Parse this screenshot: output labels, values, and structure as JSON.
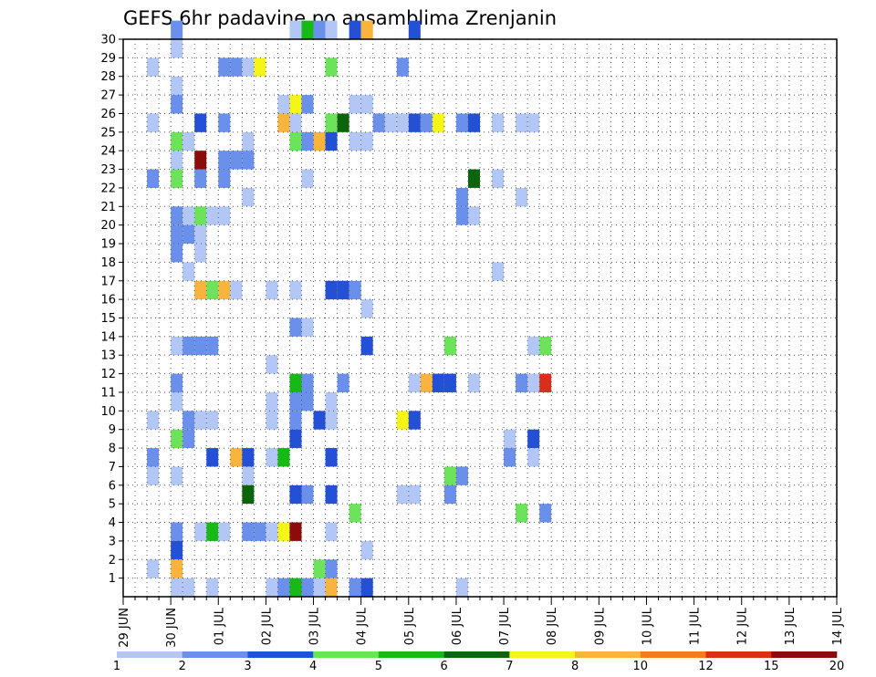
{
  "chart_data": {
    "type": "heatmap",
    "title": "GEFS 6hr padavine po ansamblima Zrenjanin",
    "xlabel": "",
    "ylabel": "",
    "x_tick_labels": [
      "29 JUN",
      "30 JUN",
      "01 JUL",
      "02 JUL",
      "03 JUL",
      "04 JUL",
      "05 JUL",
      "06 JUL",
      "07 JUL",
      "08 JUL",
      "09 JUL",
      "10 JUL",
      "11 JUL",
      "12 JUL",
      "13 JUL",
      "14 JUL"
    ],
    "x_range": [
      "29 JUN 00z",
      "14 JUL 00z"
    ],
    "time_step_hours": 6,
    "y_tick_labels": [
      "1",
      "2",
      "3",
      "4",
      "5",
      "6",
      "7",
      "8",
      "9",
      "10",
      "11",
      "12",
      "13",
      "14",
      "15",
      "16",
      "17",
      "18",
      "19",
      "20",
      "21",
      "22",
      "23",
      "24",
      "25",
      "26",
      "27",
      "28",
      "29",
      "30"
    ],
    "y_range": [
      0,
      30
    ],
    "grid": "dotted",
    "colorbar": {
      "position": "bottom",
      "labels": [
        "1",
        "2",
        "3",
        "4",
        "5",
        "6",
        "7",
        "8",
        "10",
        "12",
        "15",
        "20"
      ],
      "colors": [
        "#b3c7f7",
        "#6a90ec",
        "#2450d6",
        "#6de35b",
        "#17b917",
        "#0c650c",
        "#f5f518",
        "#f9b43e",
        "#f27c1e",
        "#d92e1b",
        "#8c0b0b"
      ]
    },
    "cell_format": "[member, time_step_index_from_29JUN_00z, color_class]",
    "cells": [
      [
        30,
        4,
        1
      ],
      [
        30,
        14,
        0
      ],
      [
        30,
        15,
        4
      ],
      [
        30,
        16,
        1
      ],
      [
        30,
        17,
        0
      ],
      [
        30,
        19,
        2
      ],
      [
        30,
        20,
        7
      ],
      [
        30,
        24,
        2
      ],
      [
        29,
        4,
        0
      ],
      [
        28,
        2,
        0
      ],
      [
        28,
        8,
        1
      ],
      [
        28,
        9,
        1
      ],
      [
        28,
        10,
        0
      ],
      [
        28,
        11,
        6
      ],
      [
        28,
        17,
        3
      ],
      [
        28,
        23,
        1
      ],
      [
        27,
        4,
        0
      ],
      [
        26,
        4,
        1
      ],
      [
        26,
        13,
        0
      ],
      [
        26,
        14,
        6
      ],
      [
        26,
        15,
        1
      ],
      [
        26,
        19,
        0
      ],
      [
        26,
        20,
        0
      ],
      [
        25,
        2,
        0
      ],
      [
        25,
        6,
        2
      ],
      [
        25,
        8,
        1
      ],
      [
        25,
        13,
        7
      ],
      [
        25,
        14,
        0
      ],
      [
        25,
        17,
        3
      ],
      [
        25,
        18,
        5
      ],
      [
        25,
        21,
        1
      ],
      [
        25,
        22,
        0
      ],
      [
        25,
        23,
        0
      ],
      [
        25,
        24,
        2
      ],
      [
        25,
        25,
        1
      ],
      [
        25,
        26,
        6
      ],
      [
        25,
        28,
        1
      ],
      [
        25,
        29,
        2
      ],
      [
        25,
        31,
        0
      ],
      [
        25,
        33,
        0
      ],
      [
        25,
        34,
        0
      ],
      [
        24,
        4,
        3
      ],
      [
        24,
        5,
        0
      ],
      [
        24,
        10,
        0
      ],
      [
        24,
        14,
        3
      ],
      [
        24,
        15,
        1
      ],
      [
        24,
        16,
        7
      ],
      [
        24,
        17,
        2
      ],
      [
        24,
        19,
        0
      ],
      [
        24,
        20,
        0
      ],
      [
        23,
        4,
        0
      ],
      [
        23,
        6,
        10
      ],
      [
        23,
        8,
        1
      ],
      [
        23,
        9,
        1
      ],
      [
        23,
        10,
        1
      ],
      [
        22,
        2,
        1
      ],
      [
        22,
        4,
        3
      ],
      [
        22,
        6,
        1
      ],
      [
        22,
        8,
        1
      ],
      [
        22,
        15,
        0
      ],
      [
        22,
        29,
        5
      ],
      [
        22,
        31,
        0
      ],
      [
        21,
        10,
        0
      ],
      [
        21,
        28,
        1
      ],
      [
        21,
        33,
        0
      ],
      [
        20,
        4,
        1
      ],
      [
        20,
        5,
        0
      ],
      [
        20,
        6,
        3
      ],
      [
        20,
        7,
        0
      ],
      [
        20,
        8,
        0
      ],
      [
        20,
        28,
        1
      ],
      [
        20,
        29,
        0
      ],
      [
        19,
        4,
        1
      ],
      [
        19,
        5,
        1
      ],
      [
        19,
        6,
        0
      ],
      [
        18,
        4,
        1
      ],
      [
        18,
        6,
        0
      ],
      [
        17,
        5,
        0
      ],
      [
        17,
        31,
        0
      ],
      [
        16,
        6,
        7
      ],
      [
        16,
        7,
        3
      ],
      [
        16,
        8,
        7
      ],
      [
        16,
        9,
        0
      ],
      [
        16,
        12,
        0
      ],
      [
        16,
        14,
        0
      ],
      [
        16,
        17,
        2
      ],
      [
        16,
        18,
        2
      ],
      [
        16,
        19,
        1
      ],
      [
        15,
        20,
        0
      ],
      [
        14,
        14,
        1
      ],
      [
        14,
        15,
        0
      ],
      [
        13,
        4,
        0
      ],
      [
        13,
        5,
        1
      ],
      [
        13,
        6,
        1
      ],
      [
        13,
        7,
        1
      ],
      [
        13,
        20,
        2
      ],
      [
        13,
        27,
        3
      ],
      [
        13,
        34,
        0
      ],
      [
        13,
        35,
        3
      ],
      [
        12,
        12,
        0
      ],
      [
        11,
        4,
        1
      ],
      [
        11,
        14,
        4
      ],
      [
        11,
        15,
        1
      ],
      [
        11,
        18,
        1
      ],
      [
        11,
        24,
        0
      ],
      [
        11,
        25,
        7
      ],
      [
        11,
        26,
        2
      ],
      [
        11,
        27,
        2
      ],
      [
        11,
        29,
        0
      ],
      [
        11,
        33,
        1
      ],
      [
        11,
        34,
        0
      ],
      [
        11,
        35,
        9
      ],
      [
        10,
        4,
        0
      ],
      [
        10,
        12,
        0
      ],
      [
        10,
        14,
        1
      ],
      [
        10,
        15,
        1
      ],
      [
        10,
        17,
        0
      ],
      [
        9,
        2,
        0
      ],
      [
        9,
        5,
        1
      ],
      [
        9,
        6,
        0
      ],
      [
        9,
        7,
        0
      ],
      [
        9,
        12,
        0
      ],
      [
        9,
        14,
        1
      ],
      [
        9,
        16,
        2
      ],
      [
        9,
        17,
        0
      ],
      [
        9,
        23,
        6
      ],
      [
        9,
        24,
        2
      ],
      [
        8,
        4,
        3
      ],
      [
        8,
        5,
        1
      ],
      [
        8,
        14,
        2
      ],
      [
        8,
        32,
        0
      ],
      [
        8,
        34,
        2
      ],
      [
        7,
        2,
        1
      ],
      [
        7,
        7,
        2
      ],
      [
        7,
        9,
        7
      ],
      [
        7,
        10,
        2
      ],
      [
        7,
        12,
        0
      ],
      [
        7,
        13,
        4
      ],
      [
        7,
        17,
        2
      ],
      [
        7,
        32,
        1
      ],
      [
        7,
        34,
        0
      ],
      [
        6,
        2,
        0
      ],
      [
        6,
        4,
        0
      ],
      [
        6,
        10,
        0
      ],
      [
        6,
        27,
        3
      ],
      [
        6,
        28,
        1
      ],
      [
        5,
        10,
        5
      ],
      [
        5,
        14,
        2
      ],
      [
        5,
        15,
        1
      ],
      [
        5,
        17,
        2
      ],
      [
        5,
        23,
        0
      ],
      [
        5,
        24,
        0
      ],
      [
        5,
        27,
        1
      ],
      [
        4,
        19,
        3
      ],
      [
        4,
        33,
        3
      ],
      [
        4,
        35,
        1
      ],
      [
        3,
        4,
        1
      ],
      [
        3,
        6,
        0
      ],
      [
        3,
        7,
        4
      ],
      [
        3,
        8,
        0
      ],
      [
        3,
        10,
        1
      ],
      [
        3,
        11,
        1
      ],
      [
        3,
        12,
        0
      ],
      [
        3,
        13,
        6
      ],
      [
        3,
        14,
        10
      ],
      [
        3,
        17,
        0
      ],
      [
        2,
        4,
        2
      ],
      [
        2,
        20,
        0
      ],
      [
        1,
        2,
        0
      ],
      [
        1,
        4,
        7
      ],
      [
        1,
        16,
        3
      ],
      [
        1,
        17,
        1
      ],
      [
        0,
        4,
        0
      ],
      [
        0,
        5,
        0
      ],
      [
        0,
        7,
        0
      ],
      [
        0,
        12,
        0
      ],
      [
        0,
        13,
        1
      ],
      [
        0,
        14,
        4
      ],
      [
        0,
        15,
        1
      ],
      [
        0,
        16,
        0
      ],
      [
        0,
        17,
        7
      ],
      [
        0,
        19,
        1
      ],
      [
        0,
        20,
        2
      ],
      [
        0,
        28,
        0
      ]
    ]
  }
}
